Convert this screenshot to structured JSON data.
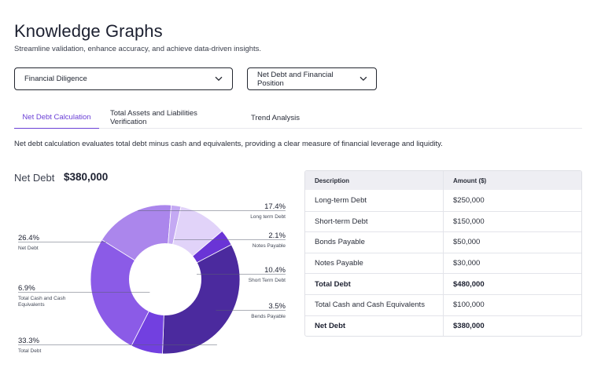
{
  "header": {
    "title": "Knowledge Graphs",
    "subtitle": "Streamline validation, enhance accuracy, and achieve data-driven insights."
  },
  "filters": {
    "domain_select": "Financial Diligence",
    "topic_select": "Net Debt and Financial Position"
  },
  "tabs": [
    {
      "label": "Net Debt Calculation",
      "active": true
    },
    {
      "label": "Total Assets and Liabilities Verification",
      "active": false
    },
    {
      "label": "Trend Analysis",
      "active": false
    }
  ],
  "description": "Net debt calculation evaluates total debt minus cash and equivalents, providing a clear measure of financial leverage and liquidity.",
  "summary": {
    "label": "Net Debt",
    "value": "$380,000"
  },
  "chart_data": {
    "type": "pie",
    "variant": "donut",
    "title": "",
    "slices": [
      {
        "name": "Long term Debt",
        "value": 17.4,
        "label": "17.4%",
        "color": "#ab86ec"
      },
      {
        "name": "Notes Payable",
        "value": 2.1,
        "label": "2.1%",
        "color": "#c4a9f3"
      },
      {
        "name": "Short Term Debt",
        "value": 10.4,
        "label": "10.4%",
        "color": "#e1d3f9"
      },
      {
        "name": "Bends Payable",
        "value": 3.5,
        "label": "3.5%",
        "color": "#6a34d6"
      },
      {
        "name": "Total Debt",
        "value": 33.3,
        "label": "33.3%",
        "color": "#4b2a9e"
      },
      {
        "name": "Total Cash and Cash Equivalents",
        "value": 6.9,
        "label": "6.9%",
        "color": "#7240e0"
      },
      {
        "name": "Net Debt",
        "value": 26.4,
        "label": "26.4%",
        "color": "#8b5be7"
      }
    ]
  },
  "table": {
    "headers": [
      "Description",
      "Amount ($)"
    ],
    "rows": [
      {
        "description": "Long-term Debt",
        "amount": "$250,000",
        "bold": false
      },
      {
        "description": "Short-term Debt",
        "amount": "$150,000",
        "bold": false
      },
      {
        "description": "Bonds Payable",
        "amount": "$50,000",
        "bold": false
      },
      {
        "description": "Notes Payable",
        "amount": "$30,000",
        "bold": false
      },
      {
        "description": "Total Debt",
        "amount": "$480,000",
        "bold": true
      },
      {
        "description": "Total Cash and Cash Equivalents",
        "amount": "$100,000",
        "bold": false
      },
      {
        "description": "Net Debt",
        "amount": "$380,000",
        "bold": true
      }
    ]
  }
}
